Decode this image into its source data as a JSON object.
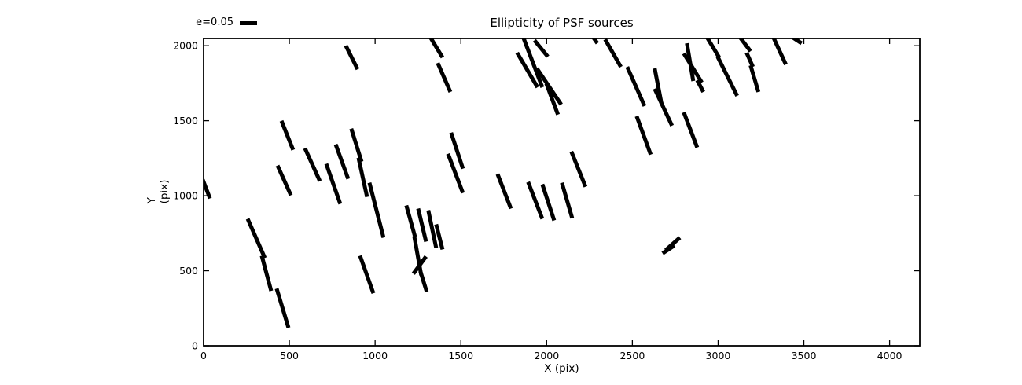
{
  "figure": {
    "title": "Ellipticity of PSF sources",
    "xlabel": "X (pix)",
    "ylabel": "Y (pix)",
    "legend_label": "e=0.05"
  },
  "chart_data": {
    "type": "scatter",
    "variant": "ellipticity-whisker-map",
    "title": "Ellipticity of PSF sources",
    "xlabel": "X (pix)",
    "ylabel": "Y (pix)",
    "xlim": [
      0,
      4176
    ],
    "ylim": [
      0,
      2048
    ],
    "x_ticks": [
      0,
      500,
      1000,
      1500,
      2000,
      2500,
      3000,
      3500,
      4000
    ],
    "y_ticks": [
      0,
      500,
      1000,
      1500,
      2000
    ],
    "grid": false,
    "legend": {
      "label": "e=0.05",
      "e_value": 0.05,
      "position": "top-left-outside"
    },
    "whisker_scale_data_units_per_e": 2000,
    "colors": {
      "whisker": "#000000",
      "axes": "#000000",
      "background": "#ffffff"
    },
    "segments": [
      [
        829,
        2000,
        898,
        1843
      ],
      [
        454,
        1499,
        522,
        1305
      ],
      [
        591,
        1316,
        678,
        1097
      ],
      [
        431,
        1201,
        509,
        1003
      ],
      [
        715,
        1212,
        797,
        945
      ],
      [
        770,
        1342,
        843,
        1112
      ],
      [
        861,
        1447,
        921,
        1227
      ],
      [
        903,
        1253,
        953,
        992
      ],
      [
        967,
        1086,
        1049,
        721
      ],
      [
        912,
        600,
        990,
        350
      ],
      [
        -5,
        1107,
        37,
        982
      ],
      [
        257,
        846,
        357,
        585
      ],
      [
        339,
        600,
        394,
        366
      ],
      [
        426,
        381,
        495,
        120
      ],
      [
        1324,
        2052,
        1393,
        1922
      ],
      [
        1365,
        1885,
        1439,
        1692
      ],
      [
        1443,
        1420,
        1512,
        1180
      ],
      [
        1425,
        1279,
        1512,
        1018
      ],
      [
        1714,
        1144,
        1792,
        914
      ],
      [
        1892,
        1091,
        1975,
        846
      ],
      [
        1975,
        1076,
        2044,
        835
      ],
      [
        2089,
        1086,
        2149,
        851
      ],
      [
        1865,
        2052,
        1975,
        1723
      ],
      [
        1828,
        1953,
        1947,
        1723
      ],
      [
        1929,
        2036,
        2007,
        1927
      ],
      [
        1943,
        1849,
        2085,
        1608
      ],
      [
        1998,
        1749,
        2066,
        1541
      ],
      [
        2264,
        2068,
        2296,
        2016
      ],
      [
        2341,
        2042,
        2433,
        1859
      ],
      [
        2470,
        1859,
        2571,
        1598
      ],
      [
        2630,
        1849,
        2671,
        1608
      ],
      [
        2630,
        1713,
        2731,
        1467
      ],
      [
        2525,
        1530,
        2607,
        1274
      ],
      [
        2800,
        1556,
        2878,
        1321
      ],
      [
        2818,
        2016,
        2855,
        1765
      ],
      [
        2800,
        1948,
        2905,
        1755
      ],
      [
        2878,
        1770,
        2914,
        1692
      ],
      [
        2937,
        2052,
        3006,
        1922
      ],
      [
        2997,
        1927,
        3111,
        1666
      ],
      [
        3130,
        2052,
        3189,
        1963
      ],
      [
        3166,
        1953,
        3203,
        1859
      ],
      [
        3189,
        1869,
        3235,
        1692
      ],
      [
        3317,
        2068,
        3395,
        1875
      ],
      [
        3432,
        2057,
        3487,
        2016
      ],
      [
        1182,
        935,
        1233,
        726
      ],
      [
        1251,
        914,
        1297,
        694
      ],
      [
        1310,
        903,
        1356,
        653
      ],
      [
        1356,
        809,
        1393,
        642
      ],
      [
        1228,
        731,
        1269,
        470
      ],
      [
        1223,
        480,
        1297,
        595
      ],
      [
        1264,
        496,
        1301,
        360
      ],
      [
        2694,
        637,
        2777,
        721
      ],
      [
        2676,
        616,
        2745,
        668
      ],
      [
        2144,
        1295,
        2227,
        1060
      ]
    ]
  }
}
